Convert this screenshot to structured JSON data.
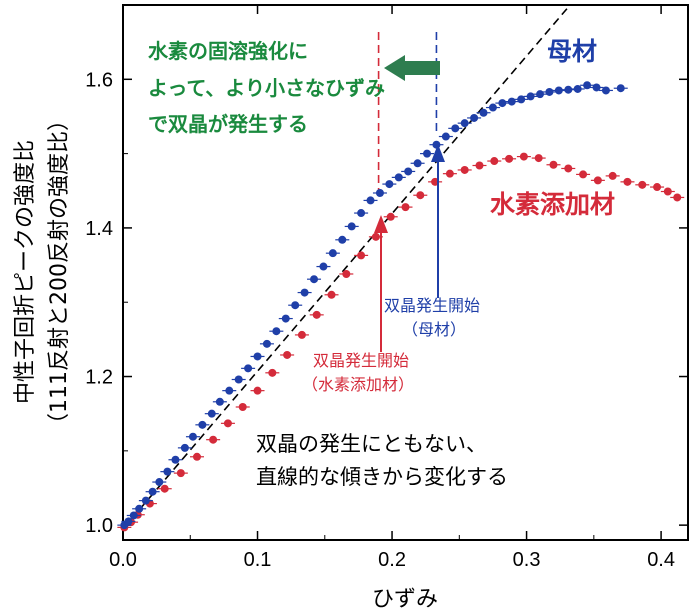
{
  "chart_data": {
    "type": "scatter",
    "xlabel": "ひずみ",
    "ylabel_line1": "中性子回折ピークの強度比",
    "ylabel_line2": "（111反射と200反射の強度比）",
    "xlim": [
      0.0,
      0.42
    ],
    "ylim": [
      0.98,
      1.7
    ],
    "x_ticks": [
      0.0,
      0.1,
      0.2,
      0.3,
      0.4
    ],
    "x_tick_labels": [
      "0.0",
      "0.1",
      "0.2",
      "0.3",
      "0.4"
    ],
    "y_ticks": [
      1.0,
      1.2,
      1.4,
      1.6
    ],
    "y_tick_labels": [
      "1.0",
      "1.2",
      "1.4",
      "1.6"
    ],
    "grid": false,
    "series": [
      {
        "name": "母材",
        "color": "#1f3fa8",
        "x": [
          0.001,
          0.004,
          0.008,
          0.012,
          0.017,
          0.022,
          0.027,
          0.033,
          0.039,
          0.046,
          0.052,
          0.059,
          0.066,
          0.072,
          0.079,
          0.086,
          0.093,
          0.1,
          0.107,
          0.114,
          0.121,
          0.128,
          0.135,
          0.142,
          0.149,
          0.156,
          0.163,
          0.17,
          0.177,
          0.184,
          0.191,
          0.198,
          0.205,
          0.212,
          0.219,
          0.226,
          0.233,
          0.24,
          0.247,
          0.254,
          0.261,
          0.268,
          0.275,
          0.282,
          0.289,
          0.296,
          0.303,
          0.31,
          0.317,
          0.324,
          0.331,
          0.338,
          0.345,
          0.352,
          0.359,
          0.37
        ],
        "y": [
          1.0,
          1.005,
          1.013,
          1.022,
          1.033,
          1.045,
          1.058,
          1.072,
          1.088,
          1.104,
          1.119,
          1.135,
          1.15,
          1.166,
          1.181,
          1.196,
          1.211,
          1.227,
          1.244,
          1.261,
          1.278,
          1.296,
          1.313,
          1.331,
          1.348,
          1.366,
          1.384,
          1.402,
          1.42,
          1.437,
          1.447,
          1.459,
          1.468,
          1.476,
          1.487,
          1.5,
          1.512,
          1.523,
          1.534,
          1.541,
          1.548,
          1.555,
          1.562,
          1.568,
          1.57,
          1.573,
          1.577,
          1.58,
          1.583,
          1.585,
          1.586,
          1.587,
          1.592,
          1.589,
          1.585,
          1.588
        ]
      },
      {
        "name": "水素添加材",
        "color": "#d42b3a",
        "x": [
          0.001,
          0.006,
          0.011,
          0.02,
          0.031,
          0.043,
          0.055,
          0.067,
          0.078,
          0.089,
          0.1,
          0.111,
          0.122,
          0.133,
          0.144,
          0.155,
          0.166,
          0.177,
          0.188,
          0.199,
          0.21,
          0.221,
          0.232,
          0.243,
          0.254,
          0.265,
          0.276,
          0.287,
          0.298,
          0.309,
          0.32,
          0.331,
          0.342,
          0.353,
          0.364,
          0.375,
          0.386,
          0.397,
          0.405,
          0.412
        ],
        "y": [
          0.997,
          1.004,
          1.014,
          1.029,
          1.049,
          1.07,
          1.092,
          1.115,
          1.137,
          1.159,
          1.181,
          1.205,
          1.229,
          1.256,
          1.283,
          1.31,
          1.338,
          1.363,
          1.388,
          1.415,
          1.428,
          1.444,
          1.462,
          1.473,
          1.478,
          1.484,
          1.49,
          1.493,
          1.496,
          1.494,
          1.485,
          1.48,
          1.472,
          1.464,
          1.47,
          1.462,
          1.458,
          1.455,
          1.449,
          1.441
        ]
      }
    ],
    "reference_line": {
      "x": [
        0.0,
        0.33
      ],
      "y": [
        0.995,
        1.695
      ],
      "style": "dashed",
      "color": "#000000"
    },
    "annotations": {
      "top_left": {
        "lines": [
          "水素の固溶強化に",
          "よって、より小さなひずみ",
          "で双晶が発生する"
        ],
        "color": "#1a8a3e"
      },
      "series_label_base": {
        "text": "母材",
        "color": "#1f3fa8"
      },
      "series_label_h": {
        "text": "水素添加材",
        "color": "#d42b3a"
      },
      "twin_base": {
        "lines": [
          "双晶発生開始",
          "（母材）"
        ],
        "color": "#1f3fa8",
        "x": 0.233
      },
      "twin_h": {
        "lines": [
          "双晶発生開始",
          "（水素添加材）"
        ],
        "color": "#d42b3a",
        "x": 0.19
      },
      "bottom": {
        "lines": [
          "双晶の発生にともない、",
          "直線的な傾きから変化する"
        ],
        "color": "#000000"
      }
    }
  }
}
